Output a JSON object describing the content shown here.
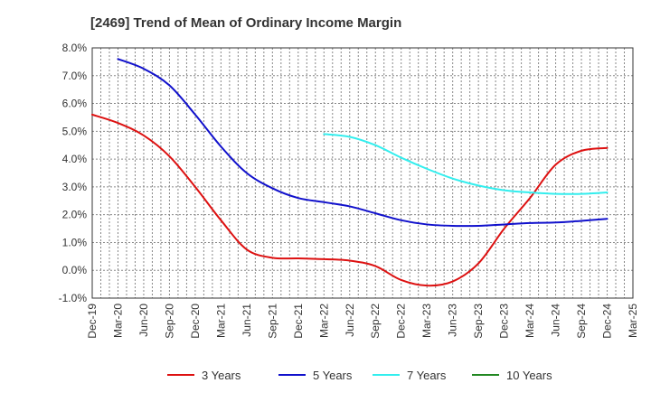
{
  "chart_data": {
    "type": "line",
    "title": "[2469]  Trend of Mean of Ordinary Income Margin",
    "xlabel": "",
    "ylabel": "",
    "ylim": [
      -1.0,
      8.0
    ],
    "y_tick_labels": [
      "8.0%",
      "7.0%",
      "6.0%",
      "5.0%",
      "4.0%",
      "3.0%",
      "2.0%",
      "1.0%",
      "0.0%",
      "-1.0%"
    ],
    "y_tick_values": [
      8,
      7,
      6,
      5,
      4,
      3,
      2,
      1,
      0,
      -1
    ],
    "x_tick_labels": [
      "Dec-19",
      "Mar-20",
      "Jun-20",
      "Sep-20",
      "Dec-20",
      "Mar-21",
      "Jun-21",
      "Sep-21",
      "Dec-21",
      "Mar-22",
      "Jun-22",
      "Sep-22",
      "Dec-22",
      "Mar-23",
      "Jun-23",
      "Sep-23",
      "Dec-23",
      "Mar-24",
      "Jun-24",
      "Sep-24",
      "Dec-24",
      "Mar-25"
    ],
    "grid": true,
    "legend_position": "bottom",
    "series": [
      {
        "name": "3 Years",
        "color": "#dd1111",
        "values": [
          5.6,
          5.3,
          4.85,
          4.1,
          3.0,
          1.8,
          0.75,
          0.45,
          0.43,
          0.4,
          0.35,
          0.15,
          -0.35,
          -0.55,
          -0.4,
          0.25,
          1.5,
          2.6,
          3.8,
          4.3,
          4.4,
          null
        ]
      },
      {
        "name": "5 Years",
        "color": "#1111cc",
        "values": [
          null,
          7.6,
          7.25,
          6.65,
          5.6,
          4.45,
          3.5,
          2.95,
          2.6,
          2.45,
          2.3,
          2.05,
          1.8,
          1.65,
          1.6,
          1.6,
          1.65,
          1.7,
          1.72,
          1.78,
          1.85,
          null
        ]
      },
      {
        "name": "7 Years",
        "color": "#33eeee",
        "values": [
          null,
          null,
          null,
          null,
          null,
          null,
          null,
          null,
          null,
          4.9,
          4.8,
          4.5,
          4.05,
          3.65,
          3.3,
          3.05,
          2.88,
          2.8,
          2.75,
          2.75,
          2.8,
          null
        ]
      },
      {
        "name": "10 Years",
        "color": "#228822",
        "values": [
          null,
          null,
          null,
          null,
          null,
          null,
          null,
          null,
          null,
          null,
          null,
          null,
          null,
          null,
          null,
          null,
          null,
          null,
          null,
          null,
          null,
          null
        ]
      }
    ]
  }
}
